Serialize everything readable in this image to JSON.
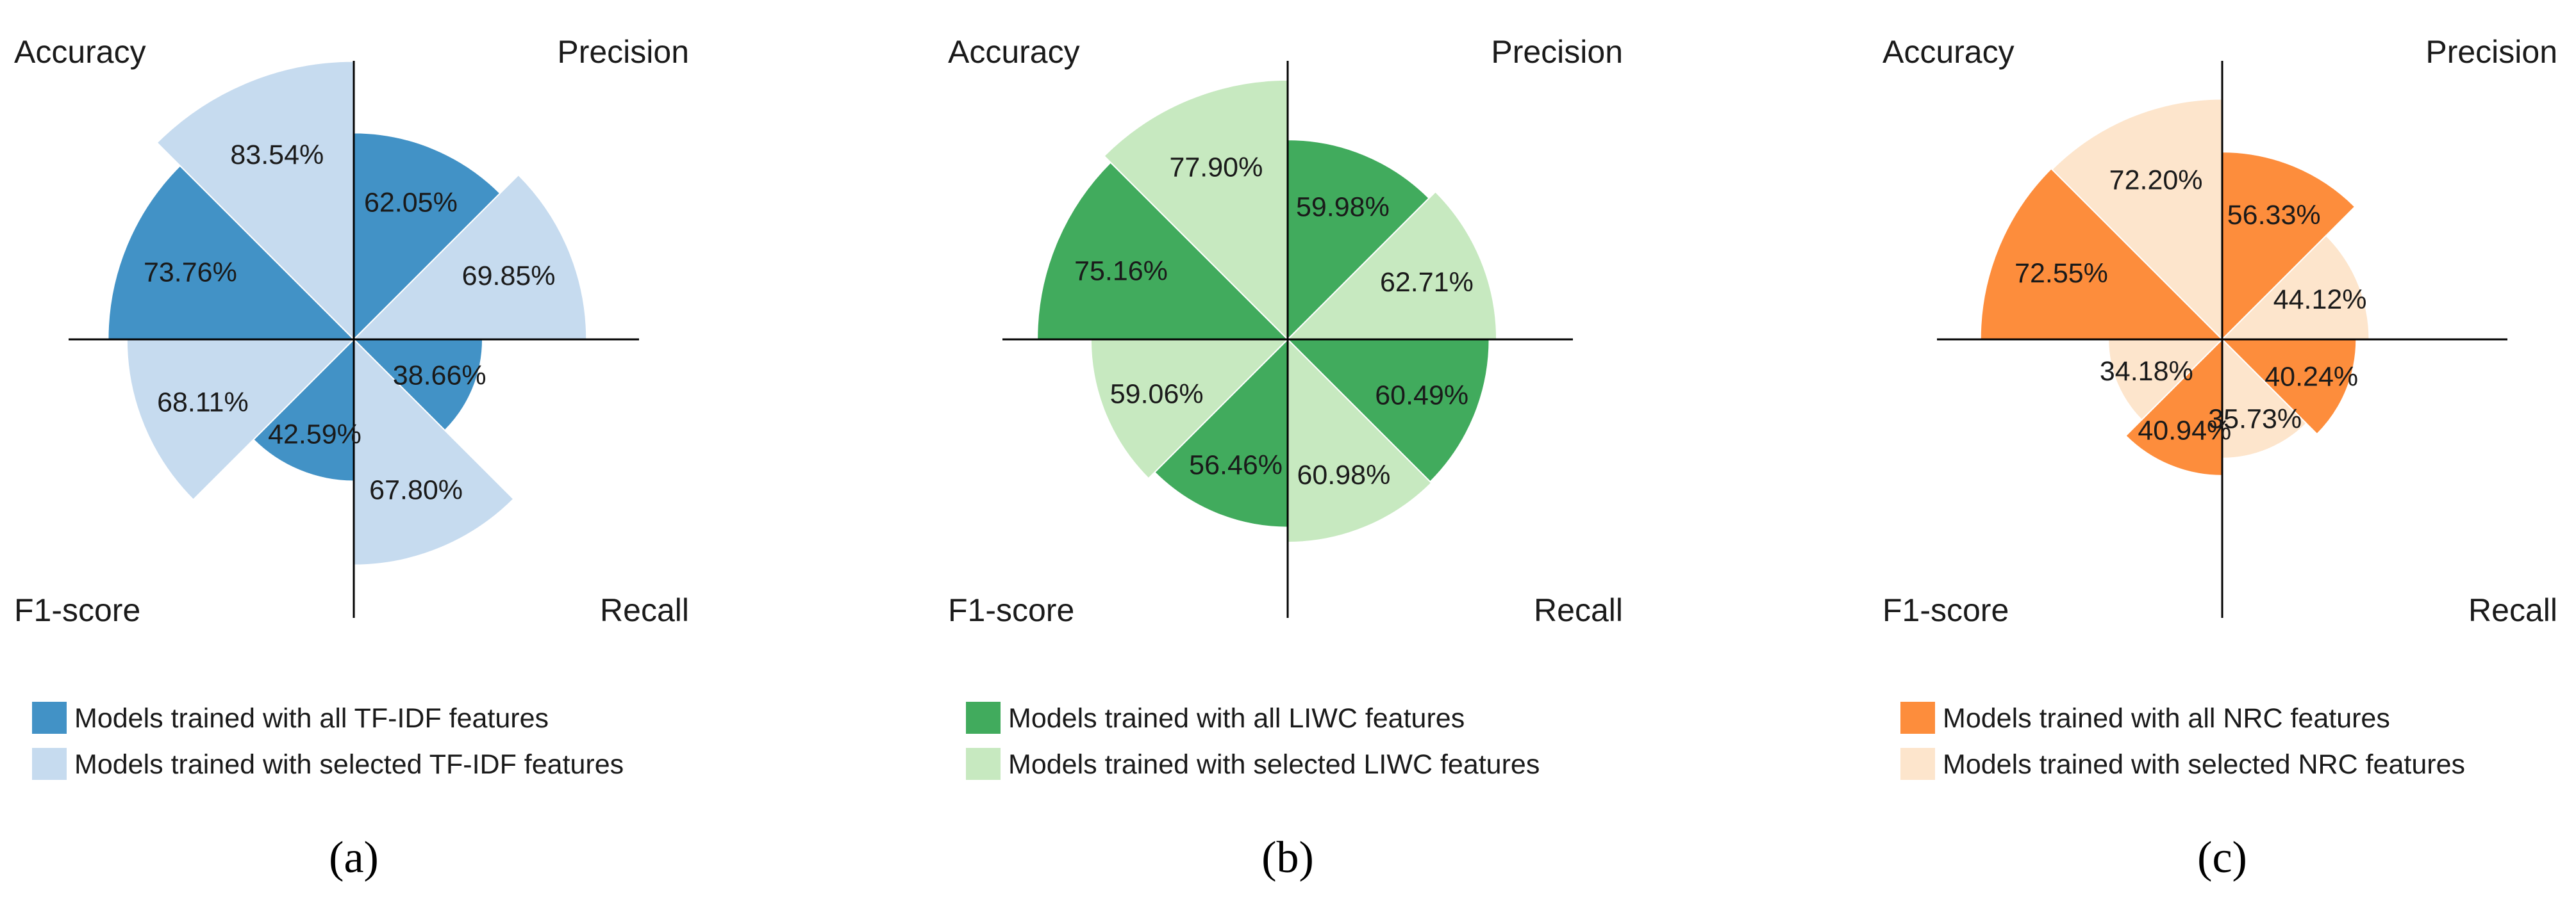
{
  "chart_data": [
    {
      "type": "polar-bar",
      "caption": "(a)",
      "categories": [
        "Accuracy",
        "Precision",
        "Recall",
        "F1-score"
      ],
      "series": [
        {
          "name": "Models trained with all TF-IDF features",
          "color": "#4292c6",
          "values": [
            73.76,
            62.05,
            38.66,
            42.59
          ],
          "labels": [
            "73.76%",
            "62.05%",
            "38.66%",
            "42.59%"
          ]
        },
        {
          "name": "Models trained with selected TF-IDF features",
          "color": "#c6dbef",
          "values": [
            83.54,
            69.85,
            67.8,
            68.11
          ],
          "labels": [
            "83.54%",
            "69.85%",
            "67.80%",
            "68.11%"
          ]
        }
      ]
    },
    {
      "type": "polar-bar",
      "caption": "(b)",
      "categories": [
        "Accuracy",
        "Precision",
        "Recall",
        "F1-score"
      ],
      "series": [
        {
          "name": "Models trained with all LIWC features",
          "color": "#41ab5d",
          "values": [
            75.16,
            59.98,
            60.49,
            56.46
          ],
          "labels": [
            "75.16%",
            "59.98%",
            "60.49%",
            "56.46%"
          ]
        },
        {
          "name": "Models trained with selected LIWC features",
          "color": "#c7e9c0",
          "values": [
            77.9,
            62.71,
            60.98,
            59.06
          ],
          "labels": [
            "77.90%",
            "62.71%",
            "60.98%",
            "59.06%"
          ]
        }
      ]
    },
    {
      "type": "polar-bar",
      "caption": "(c)",
      "categories": [
        "Accuracy",
        "Precision",
        "Recall",
        "F1-score"
      ],
      "series": [
        {
          "name": "Models trained with all NRC features",
          "color": "#fd8d3c",
          "values": [
            72.55,
            56.33,
            40.24,
            40.94
          ],
          "labels": [
            "72.55%",
            "56.33%",
            "40.24%",
            "40.94%"
          ]
        },
        {
          "name": "Models trained with selected NRC features",
          "color": "#fde5cc",
          "values": [
            72.2,
            44.12,
            35.73,
            34.18
          ],
          "labels": [
            "72.20%",
            "44.12%",
            "35.73%",
            "34.18%"
          ]
        }
      ]
    }
  ]
}
